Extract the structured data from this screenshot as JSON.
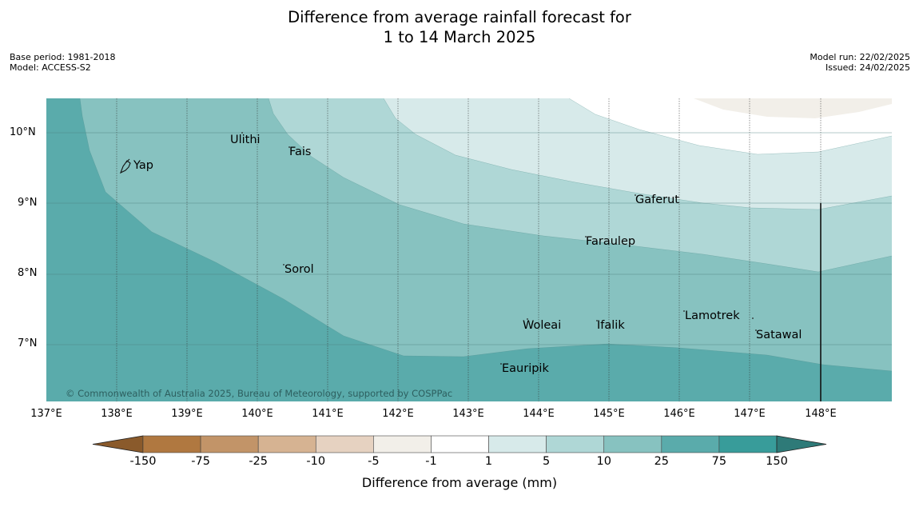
{
  "title_line1": "Difference from average rainfall forecast for",
  "title_line2": "1 to 14 March 2025",
  "meta_left": {
    "base_period": "Base period: 1981-2018",
    "model": "Model: ACCESS-S2"
  },
  "meta_right": {
    "model_run": "Model run: 22/02/2025",
    "issued": "Issued: 24/02/2025"
  },
  "lat_labels": [
    "10°N",
    "9°N",
    "8°N",
    "7°N"
  ],
  "lon_labels": [
    "137°E",
    "138°E",
    "139°E",
    "140°E",
    "141°E",
    "142°E",
    "143°E",
    "144°E",
    "145°E",
    "146°E",
    "147°E",
    "148°E"
  ],
  "places": {
    "yap": "Yap",
    "ulithi": "Ulithi",
    "fais": "Fais",
    "gaferut": "Gaferut",
    "faraulep": "Faraulep",
    "sorol": "Sorol",
    "lamotrek": "Lamotrek",
    "woleai": "Woleai",
    "ifalik": "Ifalik",
    "satawal": "Satawal",
    "eauripik": "Eauripik"
  },
  "copyright": "© Commonwealth of Australia 2025, Bureau of Meteorology, supported by COSPPac",
  "colorbar": {
    "label": "Difference from average (mm)",
    "ticks": [
      "-150",
      "-75",
      "-25",
      "-10",
      "-5",
      "-1",
      "1",
      "5",
      "10",
      "25",
      "75",
      "150"
    ],
    "colors": [
      "#8a5a2b",
      "#b07840",
      "#c29468",
      "#d6b392",
      "#e6d2c1",
      "#f2efe9",
      "#ffffff",
      "#d7eaea",
      "#afd7d6",
      "#87c2c0",
      "#5aabab",
      "#389c9a",
      "#2e7a78"
    ]
  },
  "map_colors": {
    "gt25": "#5aabab",
    "r10_25": "#87c2c0",
    "r5_10": "#afd7d6",
    "r1_5": "#d7eaea",
    "r_neutral": "#ffffff",
    "r_neg1": "#f2efe9"
  }
}
